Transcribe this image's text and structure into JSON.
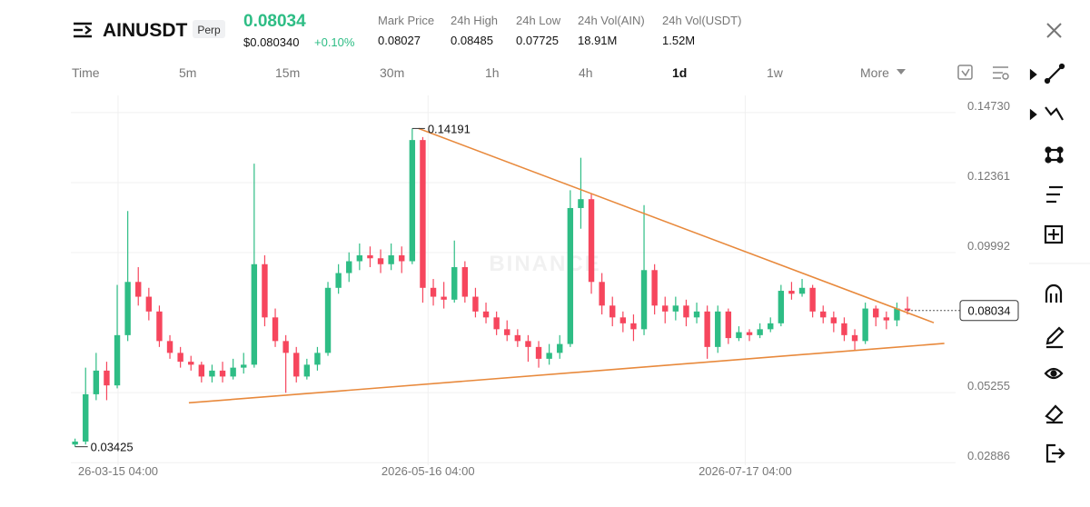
{
  "header": {
    "symbol": "AINUSDT",
    "badge": "Perp",
    "price": 0.08034,
    "price_usd": "$0.080340",
    "change": "+0.10%",
    "stats": [
      {
        "label": "Mark Price",
        "value": 0.08027
      },
      {
        "label": "24h High",
        "value": 0.08485
      },
      {
        "label": "24h Low",
        "value": 0.07725
      },
      {
        "label": "24h Vol(AIN)",
        "value": "18.91M"
      },
      {
        "label": "24h Vol(USDT)",
        "value": "1.52M"
      }
    ]
  },
  "timeframes": {
    "items": [
      "Time",
      "5m",
      "15m",
      "30m",
      "1h",
      "4h",
      "1d",
      "1w",
      "More"
    ],
    "active": "1d"
  },
  "chart_data": {
    "type": "candlestick",
    "watermark": "BINANCE",
    "up_color": "#2ebd85",
    "down_color": "#f6465d",
    "candles": [
      [
        0.035,
        0.037,
        0.03425,
        0.036
      ],
      [
        0.036,
        0.061,
        0.035,
        0.052
      ],
      [
        0.052,
        0.066,
        0.05,
        0.06
      ],
      [
        0.06,
        0.063,
        0.05,
        0.055
      ],
      [
        0.055,
        0.089,
        0.054,
        0.072
      ],
      [
        0.072,
        0.114,
        0.07,
        0.09
      ],
      [
        0.09,
        0.095,
        0.082,
        0.085
      ],
      [
        0.085,
        0.088,
        0.077,
        0.08
      ],
      [
        0.08,
        0.082,
        0.068,
        0.07
      ],
      [
        0.07,
        0.072,
        0.064,
        0.066
      ],
      [
        0.066,
        0.068,
        0.061,
        0.063
      ],
      [
        0.063,
        0.065,
        0.06,
        0.062
      ],
      [
        0.062,
        0.063,
        0.056,
        0.058
      ],
      [
        0.058,
        0.062,
        0.056,
        0.06
      ],
      [
        0.06,
        0.063,
        0.056,
        0.058
      ],
      [
        0.058,
        0.064,
        0.057,
        0.061
      ],
      [
        0.061,
        0.066,
        0.059,
        0.062
      ],
      [
        0.062,
        0.13,
        0.061,
        0.096
      ],
      [
        0.096,
        0.099,
        0.075,
        0.078
      ],
      [
        0.078,
        0.081,
        0.068,
        0.07
      ],
      [
        0.07,
        0.072,
        0.0525,
        0.066
      ],
      [
        0.066,
        0.068,
        0.056,
        0.058
      ],
      [
        0.058,
        0.064,
        0.057,
        0.062
      ],
      [
        0.062,
        0.068,
        0.06,
        0.066
      ],
      [
        0.066,
        0.09,
        0.065,
        0.088
      ],
      [
        0.088,
        0.096,
        0.086,
        0.093
      ],
      [
        0.093,
        0.1,
        0.09,
        0.097
      ],
      [
        0.097,
        0.103,
        0.094,
        0.099
      ],
      [
        0.099,
        0.102,
        0.095,
        0.098
      ],
      [
        0.098,
        0.101,
        0.093,
        0.096
      ],
      [
        0.096,
        0.103,
        0.094,
        0.099
      ],
      [
        0.099,
        0.102,
        0.093,
        0.097
      ],
      [
        0.097,
        0.14191,
        0.096,
        0.138
      ],
      [
        0.138,
        0.139,
        0.083,
        0.088
      ],
      [
        0.088,
        0.091,
        0.082,
        0.085
      ],
      [
        0.085,
        0.09,
        0.081,
        0.084
      ],
      [
        0.084,
        0.104,
        0.083,
        0.095
      ],
      [
        0.095,
        0.097,
        0.083,
        0.085
      ],
      [
        0.085,
        0.088,
        0.078,
        0.08
      ],
      [
        0.08,
        0.083,
        0.076,
        0.078
      ],
      [
        0.078,
        0.08,
        0.072,
        0.074
      ],
      [
        0.074,
        0.077,
        0.07,
        0.072
      ],
      [
        0.072,
        0.074,
        0.068,
        0.07
      ],
      [
        0.07,
        0.072,
        0.063,
        0.068
      ],
      [
        0.068,
        0.07,
        0.061,
        0.064
      ],
      [
        0.064,
        0.069,
        0.062,
        0.066
      ],
      [
        0.066,
        0.072,
        0.064,
        0.069
      ],
      [
        0.069,
        0.121,
        0.068,
        0.115
      ],
      [
        0.115,
        0.132,
        0.108,
        0.118
      ],
      [
        0.118,
        0.12,
        0.086,
        0.09
      ],
      [
        0.09,
        0.093,
        0.079,
        0.082
      ],
      [
        0.082,
        0.085,
        0.075,
        0.078
      ],
      [
        0.078,
        0.08,
        0.073,
        0.076
      ],
      [
        0.076,
        0.079,
        0.07,
        0.074
      ],
      [
        0.074,
        0.116,
        0.072,
        0.094
      ],
      [
        0.094,
        0.096,
        0.079,
        0.082
      ],
      [
        0.082,
        0.085,
        0.076,
        0.08
      ],
      [
        0.08,
        0.085,
        0.077,
        0.082
      ],
      [
        0.082,
        0.084,
        0.075,
        0.078
      ],
      [
        0.078,
        0.083,
        0.076,
        0.08
      ],
      [
        0.08,
        0.082,
        0.064,
        0.068
      ],
      [
        0.068,
        0.082,
        0.066,
        0.08
      ],
      [
        0.08,
        0.081,
        0.069,
        0.071
      ],
      [
        0.071,
        0.075,
        0.07,
        0.073
      ],
      [
        0.073,
        0.074,
        0.07,
        0.072
      ],
      [
        0.072,
        0.076,
        0.071,
        0.074
      ],
      [
        0.074,
        0.078,
        0.073,
        0.076
      ],
      [
        0.076,
        0.089,
        0.075,
        0.087
      ],
      [
        0.087,
        0.09,
        0.084,
        0.086
      ],
      [
        0.086,
        0.091,
        0.085,
        0.088
      ],
      [
        0.088,
        0.089,
        0.078,
        0.08
      ],
      [
        0.08,
        0.082,
        0.076,
        0.078
      ],
      [
        0.078,
        0.08,
        0.073,
        0.076
      ],
      [
        0.076,
        0.078,
        0.07,
        0.072
      ],
      [
        0.072,
        0.074,
        0.067,
        0.07
      ],
      [
        0.07,
        0.083,
        0.069,
        0.081
      ],
      [
        0.081,
        0.082,
        0.075,
        0.078
      ],
      [
        0.078,
        0.08,
        0.074,
        0.077
      ],
      [
        0.077,
        0.083,
        0.075,
        0.081
      ],
      [
        0.081,
        0.085,
        0.079,
        0.08034
      ]
    ],
    "xlim": [
      -0.4,
      89.6
    ],
    "xticks": [
      {
        "value": 4.08,
        "label": "26-03-15 04:00"
      },
      {
        "value": 33.5,
        "label": "2026-05-16 04:00"
      },
      {
        "value": 63.6,
        "label": "2026-07-17 04:00"
      }
    ],
    "ylim": [
      0.028,
      0.1531
    ],
    "yticks": [
      {
        "value": 0.1473,
        "label": "0.14730"
      },
      {
        "value": 0.12361,
        "label": "0.12361"
      },
      {
        "value": 0.09992,
        "label": "0.09992"
      },
      {
        "value": 0.05255,
        "label": "0.05255"
      },
      {
        "value": 0.02886,
        "label": "0.02886"
      }
    ],
    "grid": true,
    "last_price": {
      "value": 0.08034,
      "label": "0.08034"
    },
    "high_label": {
      "text": "0.14191",
      "candle": 32
    },
    "low_label": {
      "text": "0.03425",
      "candle": 0
    },
    "trendlines": [
      {
        "color": "#e8893c",
        "x": [
          32.6,
          81.5
        ],
        "y": [
          0.14191,
          0.0762
        ]
      },
      {
        "color": "#e8893c",
        "x": [
          10.8,
          82.5
        ],
        "y": [
          0.0491,
          0.0692
        ]
      }
    ]
  }
}
